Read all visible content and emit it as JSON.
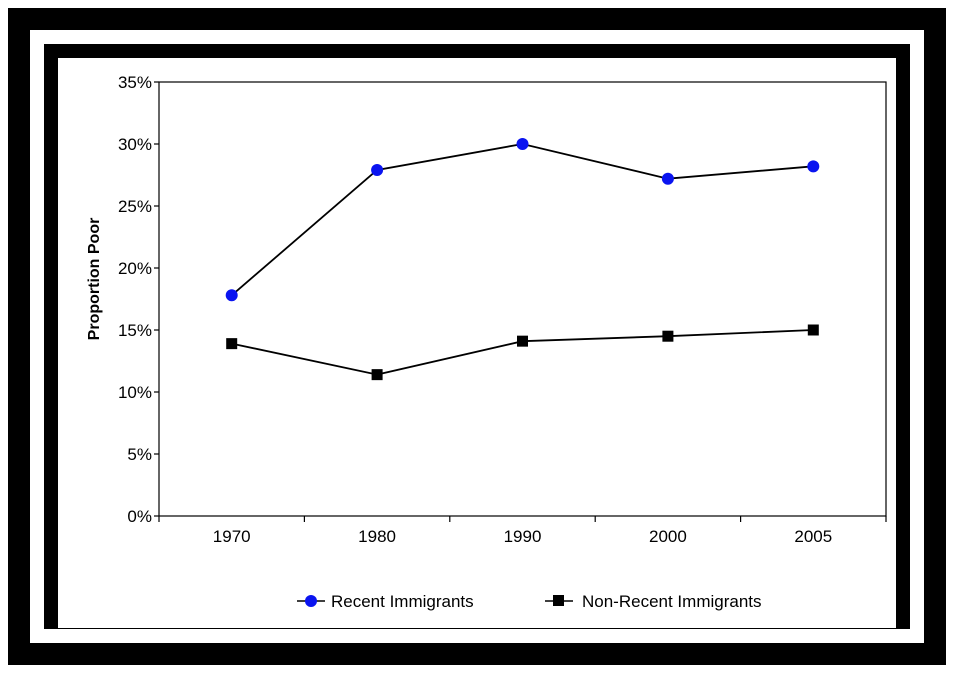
{
  "chart_data": {
    "type": "line",
    "title": "",
    "xlabel": "",
    "ylabel": "Proportion Poor",
    "categories": [
      "1970",
      "1980",
      "1990",
      "2000",
      "2005"
    ],
    "y_ticks": [
      "0%",
      "5%",
      "10%",
      "15%",
      "20%",
      "25%",
      "30%",
      "35%"
    ],
    "ylim": [
      0,
      35
    ],
    "grid": false,
    "legend_position": "bottom",
    "series": [
      {
        "name": "Recent Immigrants",
        "values": [
          17.8,
          27.9,
          30.0,
          27.2,
          28.2
        ],
        "color": "#0a14f0",
        "marker": "circle"
      },
      {
        "name": "Non-Recent Immigrants",
        "values": [
          13.9,
          11.4,
          14.1,
          14.5,
          15.0
        ],
        "color": "#000000",
        "marker": "square"
      }
    ],
    "line_color": "#000000"
  }
}
